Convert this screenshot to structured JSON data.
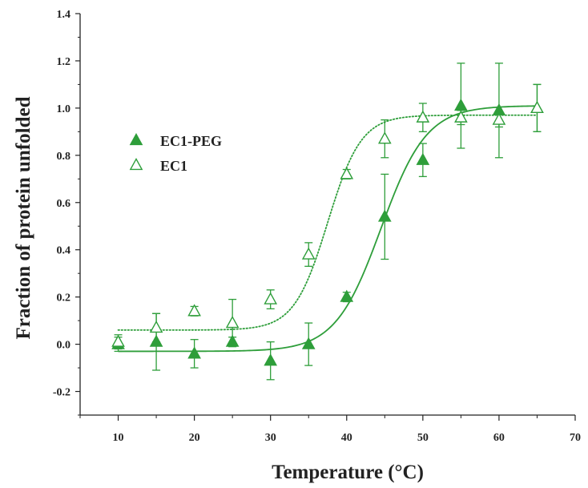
{
  "chart_data": {
    "type": "scatter",
    "title": "",
    "xlabel": "Temperature (°C)",
    "ylabel": "Fraction of protein unfolded",
    "xlim": [
      5,
      70
    ],
    "ylim": [
      -0.3,
      1.4
    ],
    "xticks": [
      10,
      20,
      30,
      40,
      50,
      60,
      70
    ],
    "yticks": [
      -0.2,
      0.0,
      0.2,
      0.4,
      0.6,
      0.8,
      1.0,
      1.2,
      1.4
    ],
    "xtick_labels": [
      "10",
      "20",
      "30",
      "40",
      "50",
      "60",
      "70"
    ],
    "ytick_labels": [
      "-0.2",
      "0.0",
      "0.2",
      "0.4",
      "0.6",
      "0.8",
      "1.0",
      "1.2",
      "1.4"
    ],
    "grid": false,
    "legend_position": "upper-left",
    "color": "#2e9e3a",
    "series": [
      {
        "name": "EC1-PEG",
        "marker": "filled-triangle",
        "fit_line": "solid",
        "fit": {
          "bottom": -0.03,
          "top": 1.01,
          "midpoint": 44.5,
          "slope": 3.0
        },
        "x": [
          10,
          15,
          20,
          25,
          30,
          35,
          40,
          45,
          50,
          55,
          60,
          65
        ],
        "y": [
          0.0,
          0.01,
          -0.04,
          0.01,
          -0.07,
          0.0,
          0.2,
          0.54,
          0.78,
          1.01,
          0.99,
          1.0
        ],
        "err": [
          0.03,
          0.12,
          0.06,
          0.02,
          0.08,
          0.09,
          0.02,
          0.18,
          0.07,
          0.18,
          0.2,
          0.1
        ]
      },
      {
        "name": "EC1",
        "marker": "open-triangle",
        "fit_line": "dotted",
        "fit": {
          "bottom": 0.06,
          "top": 0.97,
          "midpoint": 37.5,
          "slope": 2.2
        },
        "x": [
          10,
          15,
          20,
          25,
          30,
          35,
          40,
          45,
          50,
          55,
          60,
          65
        ],
        "y": [
          0.01,
          0.07,
          0.14,
          0.09,
          0.19,
          0.38,
          0.72,
          0.87,
          0.96,
          0.96,
          0.95,
          1.0
        ],
        "err": [
          0.03,
          0.06,
          0.02,
          0.1,
          0.04,
          0.05,
          0.02,
          0.08,
          0.06,
          0.03,
          0.03,
          0.1
        ]
      }
    ]
  }
}
